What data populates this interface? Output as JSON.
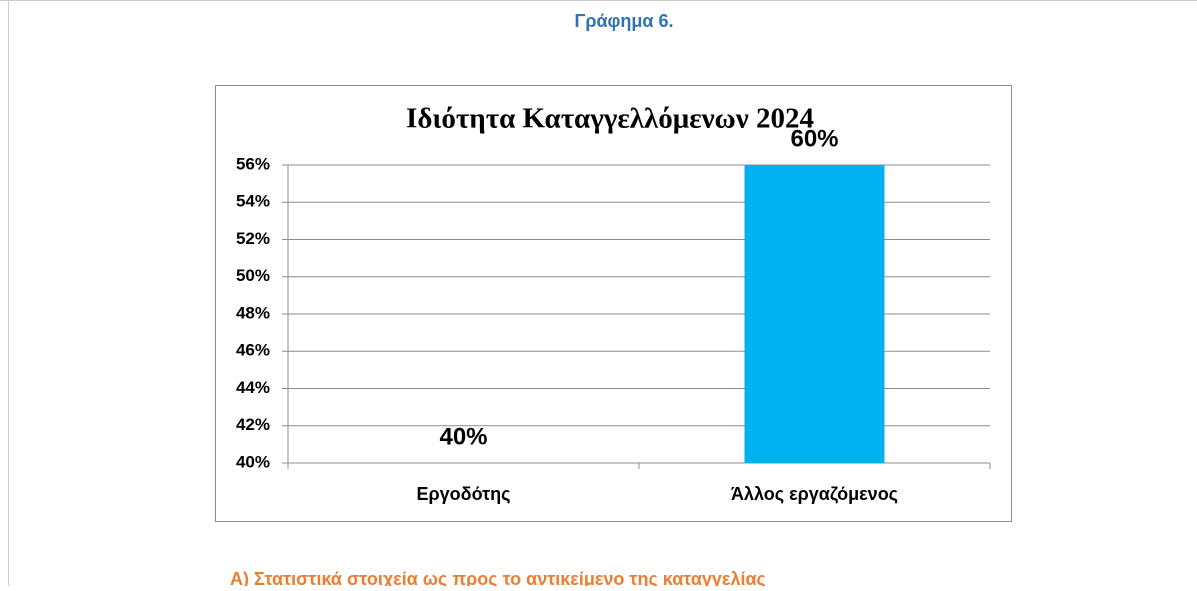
{
  "heading": "Γράφημα 6.",
  "chart_data": {
    "type": "bar",
    "title": "Ιδιότητα Καταγγελλόμενων 2024",
    "categories": [
      "Εργοδότης",
      "Άλλος εργαζόμενος"
    ],
    "values": [
      40,
      60
    ],
    "value_labels": [
      "40%",
      "60%"
    ],
    "color": "#00b0f0",
    "ylim": [
      40,
      56
    ],
    "yticks": [
      {
        "value": 40,
        "label": "40%"
      },
      {
        "value": 42,
        "label": "42%"
      },
      {
        "value": 44,
        "label": "44%"
      },
      {
        "value": 46,
        "label": "46%"
      },
      {
        "value": 48,
        "label": "48%"
      },
      {
        "value": 50,
        "label": "50%"
      },
      {
        "value": 52,
        "label": "52%"
      },
      {
        "value": 54,
        "label": "54%"
      },
      {
        "value": 56,
        "label": "56%"
      }
    ],
    "grid": true
  },
  "footer_text": "Α) Στατιστικά στοιχεία ως προς το αντικείμενο της καταγγελίας"
}
